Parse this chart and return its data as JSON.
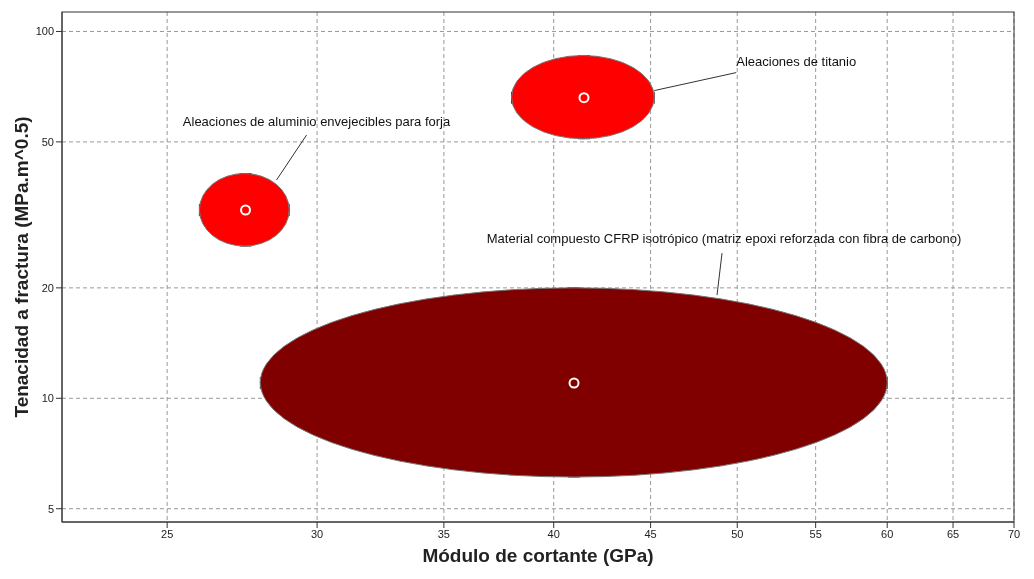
{
  "chart_data": {
    "type": "scatter",
    "xlabel": "Módulo de cortante (GPa)",
    "ylabel": "Tenacidad a fractura (MPa.m^0.5)",
    "log": "xy",
    "grid": true,
    "legend": false,
    "xlim": [
      22,
      70
    ],
    "xticks": [
      25,
      30,
      35,
      40,
      45,
      50,
      55,
      60,
      65,
      70
    ],
    "ylim": [
      4.6,
      113
    ],
    "yticks": [
      5,
      10,
      20,
      50,
      100
    ],
    "annotations": [
      "Aleaciones de aluminio envejecibles para forja",
      {
        "text": "Aleaciones de titanio",
        "x": 45.2,
        "y": 69
      },
      "Material compuesto CFRP isotrópico (matriz epoxi reforzada con fibra de carbono)"
    ],
    "series": [
      {
        "color": "#ff0000",
        "x": [
          27.5
        ],
        "values": [
          32.6
        ],
        "xerrors": [
          [
            26,
            29
          ]
        ],
        "errors": [
          [
            26,
            41
          ]
        ]
      },
      {
        "color": "#ff0000",
        "x": [
          41.5
        ],
        "values": [
          66
        ],
        "xerrors": [
          [
            38,
            45.2
          ]
        ],
        "errors": [
          [
            51,
            86
          ]
        ]
      },
      {
        "color": "#800000",
        "x": [
          41
        ],
        "values": [
          11
        ],
        "xerrors": [
          [
            28,
            60
          ]
        ],
        "errors": [
          [
            6.1,
            20
          ]
        ]
      }
    ]
  }
}
